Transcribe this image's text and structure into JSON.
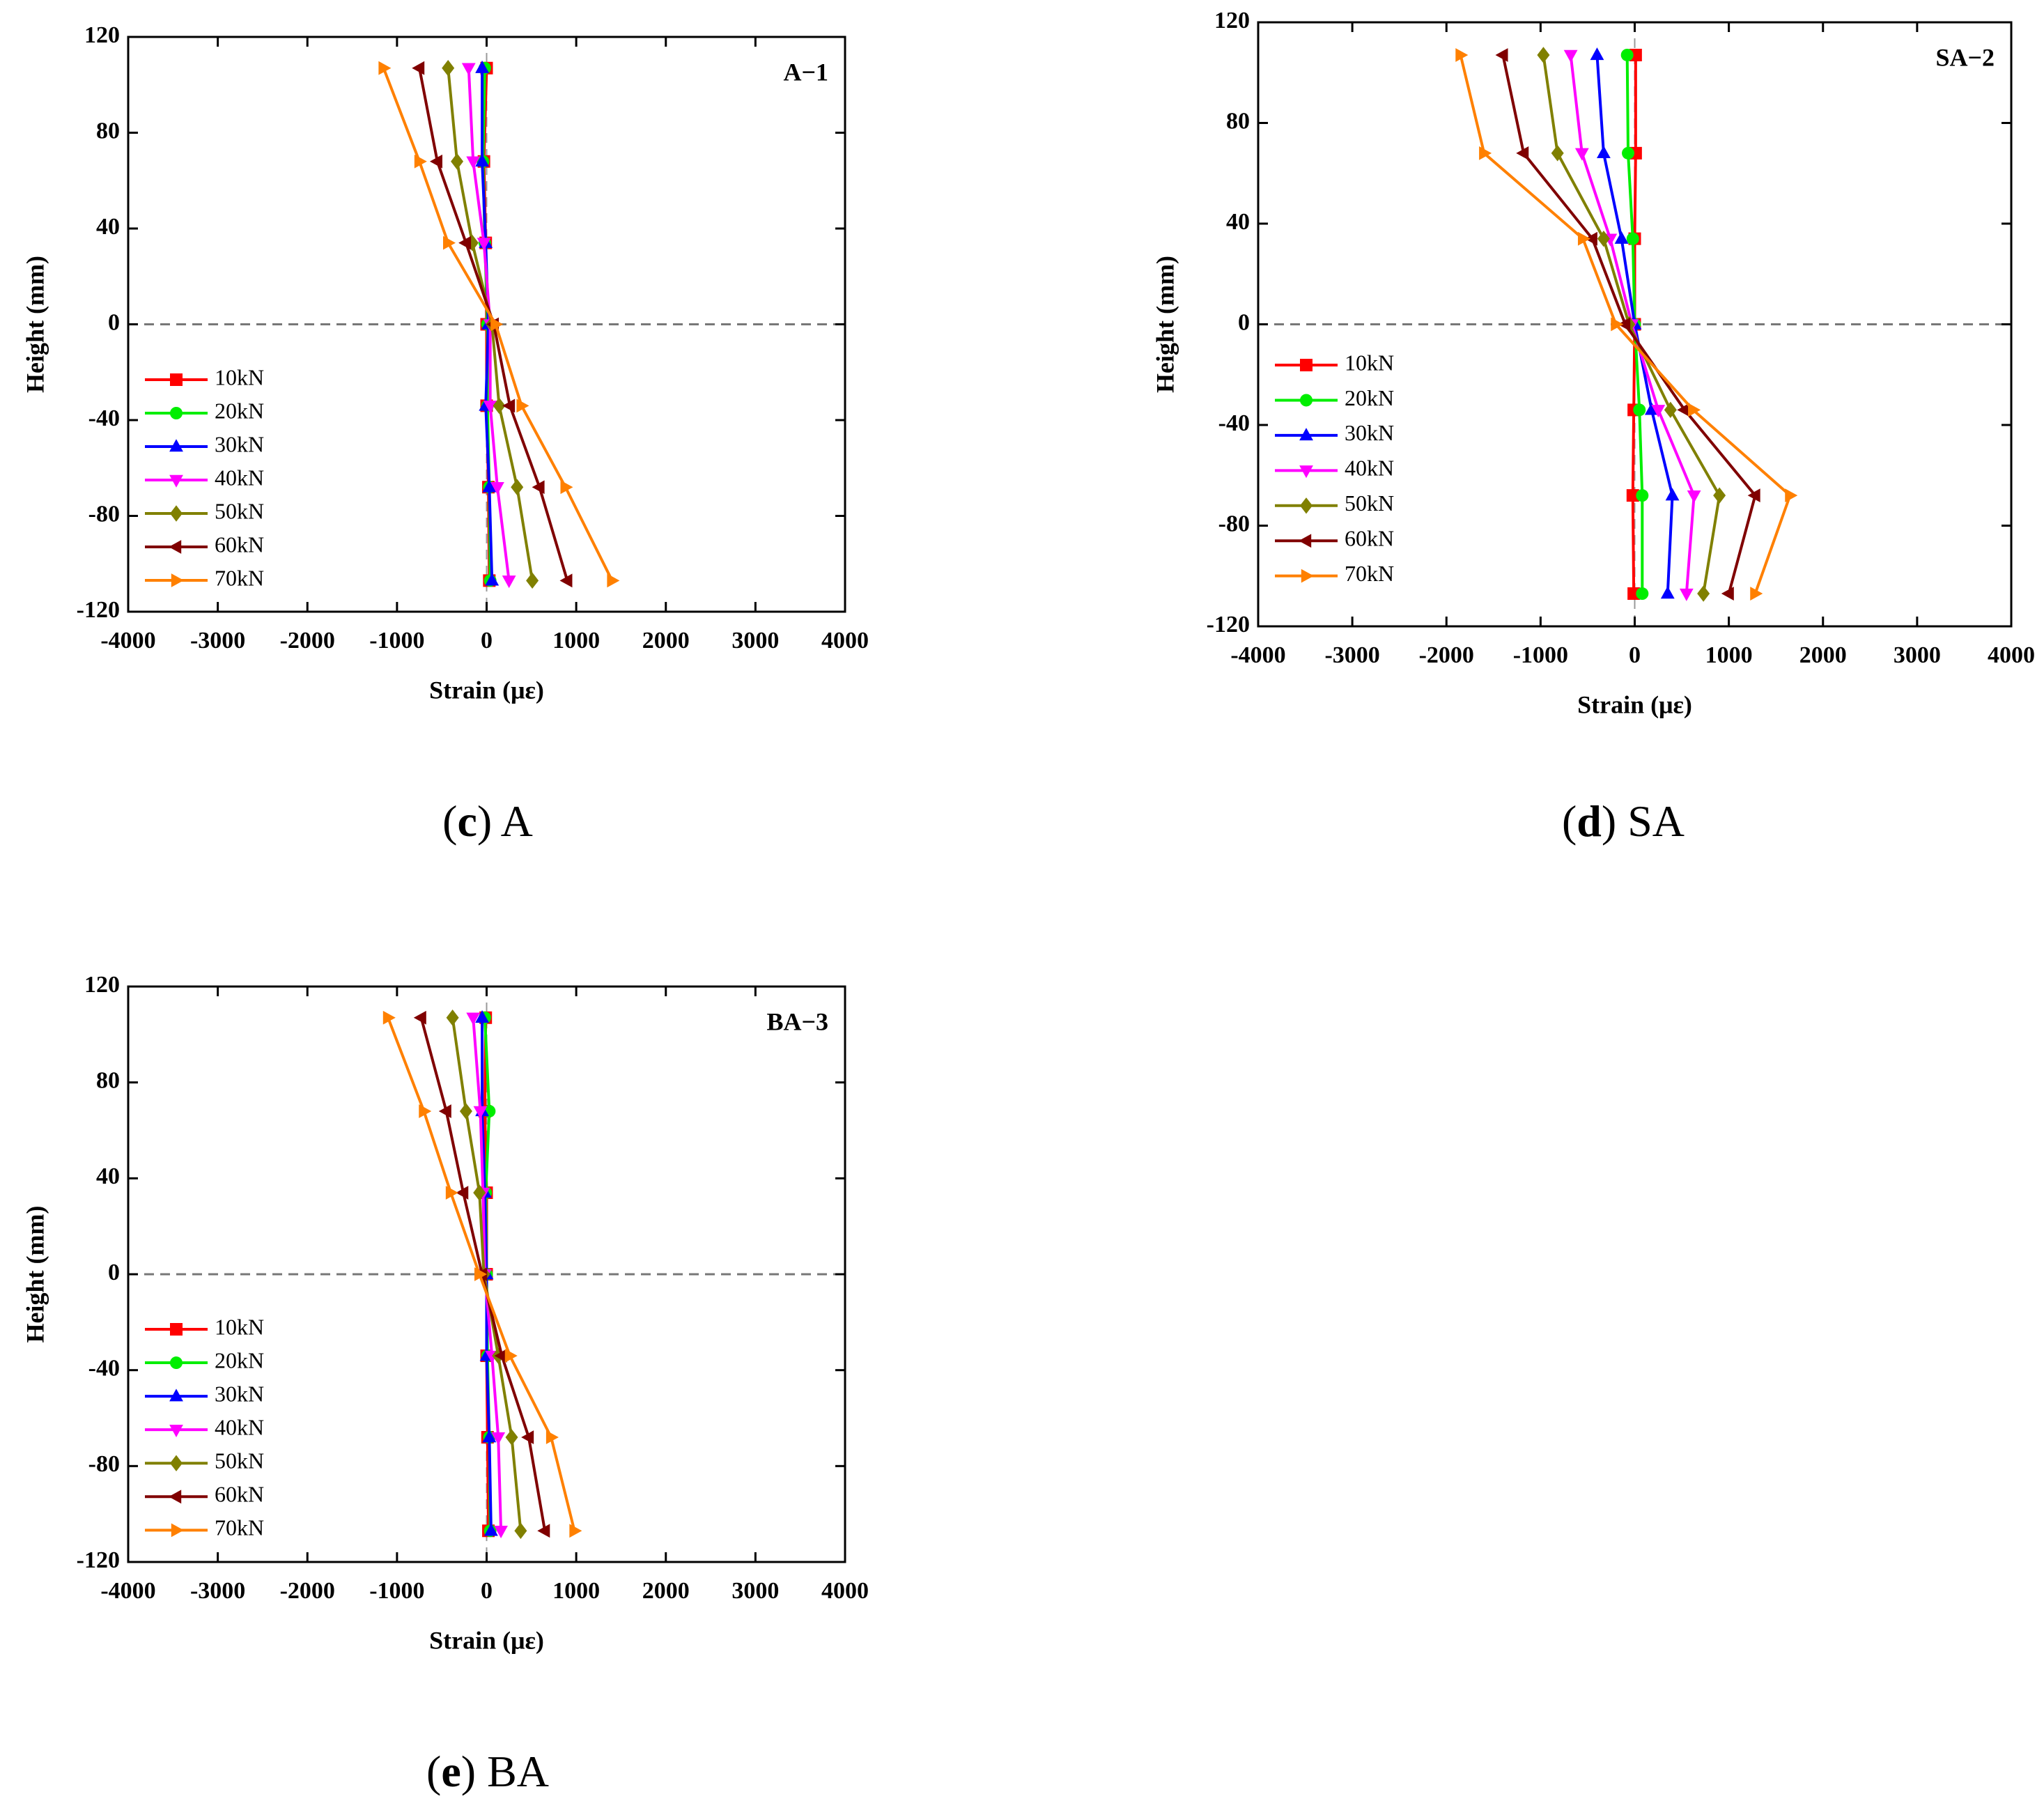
{
  "chart_data": [
    {
      "type": "line",
      "annotation": "A−1",
      "x_label": "Strain (με)",
      "y_label": "Height (mm)",
      "caption_parts": [
        "(",
        "c",
        ") A"
      ],
      "xlim": [
        -4000,
        4000
      ],
      "xticks": [
        -4000,
        -3000,
        -2000,
        -1000,
        0,
        1000,
        2000,
        3000,
        4000
      ],
      "ylim": [
        -120,
        120
      ],
      "yticks": [
        -120,
        -80,
        -40,
        0,
        40,
        80,
        120
      ],
      "hline": 0,
      "vline": 0,
      "series": [
        {
          "name": "10kN",
          "color": "#ff0000",
          "marker": "square",
          "x": [
            0,
            -30,
            -10,
            0,
            0,
            20,
            30
          ],
          "y": [
            107,
            68,
            34,
            0,
            -34,
            -68,
            -107
          ]
        },
        {
          "name": "20kN",
          "color": "#00ee00",
          "marker": "circle",
          "x": [
            -20,
            -40,
            -20,
            10,
            10,
            30,
            40
          ],
          "y": [
            107,
            68,
            34,
            0,
            -34,
            -68,
            -107
          ]
        },
        {
          "name": "30kN",
          "color": "#0000ff",
          "marker": "triangle-up",
          "x": [
            -50,
            -50,
            -10,
            20,
            -10,
            30,
            60
          ],
          "y": [
            107,
            68,
            34,
            0,
            -34,
            -68,
            -107
          ]
        },
        {
          "name": "40kN",
          "color": "#ff00ff",
          "marker": "triangle-down",
          "x": [
            -200,
            -150,
            -30,
            40,
            40,
            120,
            250
          ],
          "y": [
            107,
            68,
            34,
            0,
            -34,
            -68,
            -107
          ]
        },
        {
          "name": "50kN",
          "color": "#808000",
          "marker": "diamond",
          "x": [
            -430,
            -330,
            -160,
            60,
            140,
            340,
            510
          ],
          "y": [
            107,
            68,
            34,
            0,
            -34,
            -68,
            -107
          ]
        },
        {
          "name": "60kN",
          "color": "#800000",
          "marker": "triangle-left",
          "x": [
            -750,
            -550,
            -230,
            80,
            260,
            590,
            900
          ],
          "y": [
            107,
            68,
            34,
            0,
            -34,
            -68,
            -107
          ]
        },
        {
          "name": "70kN",
          "color": "#ff8000",
          "marker": "triangle-right",
          "x": [
            -1150,
            -750,
            -430,
            100,
            390,
            880,
            1400
          ],
          "y": [
            107,
            68,
            34,
            0,
            -34,
            -68,
            -107
          ]
        }
      ]
    },
    {
      "type": "line",
      "annotation": "SA−2",
      "x_label": "Strain (με)",
      "y_label": "Height (mm)",
      "caption_parts": [
        "(",
        "d",
        ") SA"
      ],
      "xlim": [
        -4000,
        4000
      ],
      "xticks": [
        -4000,
        -3000,
        -2000,
        -1000,
        0,
        1000,
        2000,
        3000,
        4000
      ],
      "ylim": [
        -120,
        120
      ],
      "yticks": [
        -120,
        -80,
        -40,
        0,
        40,
        80,
        120
      ],
      "hline": 0,
      "vline": 0,
      "series": [
        {
          "name": "10kN",
          "color": "#ff0000",
          "marker": "square",
          "x": [
            10,
            10,
            0,
            0,
            -10,
            -20,
            -10
          ],
          "y": [
            107,
            68,
            34,
            0,
            -34,
            -68,
            -107
          ]
        },
        {
          "name": "20kN",
          "color": "#00ee00",
          "marker": "circle",
          "x": [
            -80,
            -70,
            -20,
            0,
            50,
            80,
            80
          ],
          "y": [
            107,
            68,
            34,
            0,
            -34,
            -68,
            -107
          ]
        },
        {
          "name": "30kN",
          "color": "#0000ff",
          "marker": "triangle-up",
          "x": [
            -400,
            -330,
            -140,
            0,
            180,
            400,
            350
          ],
          "y": [
            107,
            68,
            34,
            0,
            -34,
            -68,
            -107
          ]
        },
        {
          "name": "40kN",
          "color": "#ff00ff",
          "marker": "triangle-down",
          "x": [
            -680,
            -560,
            -260,
            -30,
            250,
            630,
            550
          ],
          "y": [
            107,
            68,
            34,
            0,
            -34,
            -68,
            -107
          ]
        },
        {
          "name": "50kN",
          "color": "#808000",
          "marker": "diamond",
          "x": [
            -970,
            -820,
            -330,
            -60,
            380,
            900,
            730
          ],
          "y": [
            107,
            68,
            34,
            0,
            -34,
            -68,
            -107
          ]
        },
        {
          "name": "60kN",
          "color": "#800000",
          "marker": "triangle-left",
          "x": [
            -1400,
            -1180,
            -450,
            -100,
            530,
            1280,
            1000
          ],
          "y": [
            107,
            68,
            34,
            0,
            -34,
            -68,
            -107
          ]
        },
        {
          "name": "70kN",
          "color": "#ff8000",
          "marker": "triangle-right",
          "x": [
            -1850,
            -1600,
            -550,
            -200,
            620,
            1650,
            1280
          ],
          "y": [
            107,
            68,
            34,
            0,
            -34,
            -68,
            -107
          ]
        }
      ]
    },
    {
      "type": "line",
      "annotation": "BA−3",
      "x_label": "Strain (με)",
      "y_label": "Height (mm)",
      "caption_parts": [
        "(",
        "e",
        ") BA"
      ],
      "xlim": [
        -4000,
        4000
      ],
      "xticks": [
        -4000,
        -3000,
        -2000,
        -1000,
        0,
        1000,
        2000,
        3000,
        4000
      ],
      "ylim": [
        -120,
        120
      ],
      "yticks": [
        -120,
        -80,
        -40,
        0,
        40,
        80,
        120
      ],
      "hline": 0,
      "vline": 0,
      "series": [
        {
          "name": "10kN",
          "color": "#ff0000",
          "marker": "square",
          "x": [
            -10,
            -20,
            0,
            0,
            0,
            10,
            20
          ],
          "y": [
            107,
            68,
            34,
            0,
            -34,
            -68,
            -107
          ]
        },
        {
          "name": "20kN",
          "color": "#00ee00",
          "marker": "circle",
          "x": [
            -20,
            30,
            -10,
            0,
            10,
            30,
            40
          ],
          "y": [
            107,
            68,
            34,
            0,
            -34,
            -68,
            -107
          ]
        },
        {
          "name": "30kN",
          "color": "#0000ff",
          "marker": "triangle-up",
          "x": [
            -50,
            -50,
            -20,
            0,
            0,
            30,
            50
          ],
          "y": [
            107,
            68,
            34,
            0,
            -34,
            -68,
            -107
          ]
        },
        {
          "name": "40kN",
          "color": "#ff00ff",
          "marker": "triangle-down",
          "x": [
            -150,
            -70,
            -40,
            -20,
            60,
            130,
            160
          ],
          "y": [
            107,
            68,
            34,
            0,
            -34,
            -68,
            -107
          ]
        },
        {
          "name": "50kN",
          "color": "#808000",
          "marker": "diamond",
          "x": [
            -380,
            -230,
            -80,
            -30,
            130,
            280,
            380
          ],
          "y": [
            107,
            68,
            34,
            0,
            -34,
            -68,
            -107
          ]
        },
        {
          "name": "60kN",
          "color": "#800000",
          "marker": "triangle-left",
          "x": [
            -730,
            -450,
            -260,
            -50,
            170,
            470,
            650
          ],
          "y": [
            107,
            68,
            34,
            0,
            -34,
            -68,
            -107
          ]
        },
        {
          "name": "70kN",
          "color": "#ff8000",
          "marker": "triangle-right",
          "x": [
            -1100,
            -700,
            -400,
            -80,
            260,
            720,
            980
          ],
          "y": [
            107,
            68,
            34,
            0,
            -34,
            -68,
            -107
          ]
        }
      ]
    }
  ]
}
